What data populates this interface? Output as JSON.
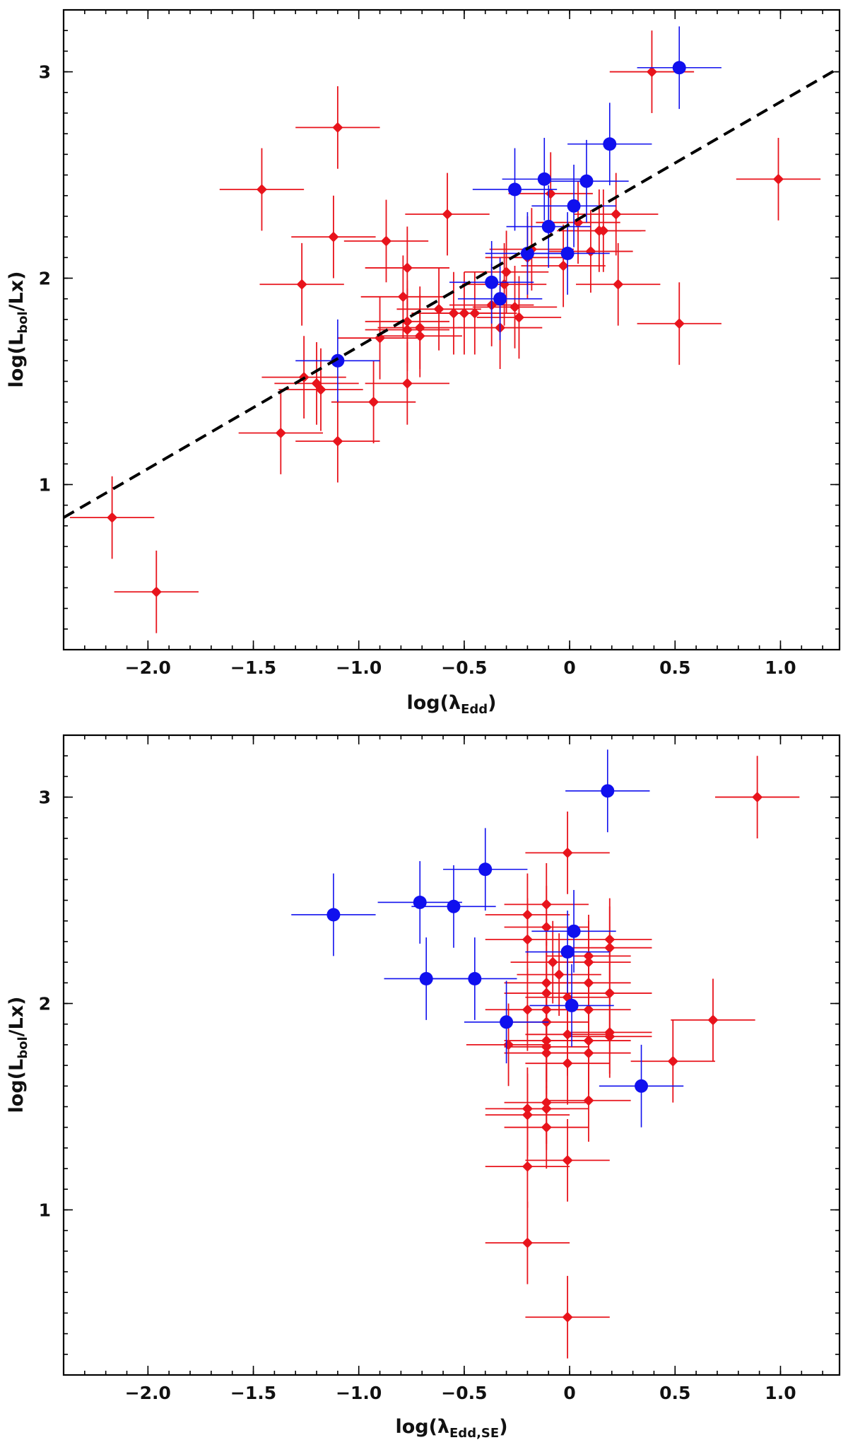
{
  "chart_data": [
    {
      "type": "scatter",
      "xlabel": "log(λ",
      "xlabel_sub": "Edd",
      "xlabel_tail": ")",
      "ylabel": "log(L",
      "ylabel_sub": "bol",
      "ylabel_tail": "/Lx)",
      "xlim": [
        -2.4,
        1.28
      ],
      "ylim": [
        0.2,
        3.3
      ],
      "x_ticks": [
        -2.0,
        -1.5,
        -1.0,
        -0.5,
        0,
        0.5,
        1.0
      ],
      "x_tick_labels": [
        "−2.0",
        "−1.5",
        "−1.0",
        "−0.5",
        "0",
        "0.5",
        "1.0"
      ],
      "y_ticks": [
        1,
        2,
        3
      ],
      "y_tick_labels": [
        "1",
        "2",
        "3"
      ],
      "grid": false,
      "fit_line": {
        "x": [
          -2.4,
          1.28
        ],
        "y": [
          0.84,
          3.02
        ],
        "style": "dashed",
        "color": "#000000"
      },
      "series": [
        {
          "color": "#e8141c",
          "marker": "diamond",
          "points": [
            {
              "x": -2.17,
              "y": 0.84,
              "xerr": 0.2,
              "yerr": 0.2
            },
            {
              "x": -1.96,
              "y": 0.48,
              "xerr": 0.2,
              "yerr": 0.2
            },
            {
              "x": -1.46,
              "y": 2.43,
              "xerr": 0.2,
              "yerr": 0.2
            },
            {
              "x": -1.1,
              "y": 2.73,
              "xerr": 0.2,
              "yerr": 0.2
            },
            {
              "x": -1.12,
              "y": 2.2,
              "xerr": 0.2,
              "yerr": 0.2
            },
            {
              "x": -1.27,
              "y": 1.97,
              "xerr": 0.2,
              "yerr": 0.2
            },
            {
              "x": -1.37,
              "y": 1.25,
              "xerr": 0.2,
              "yerr": 0.2
            },
            {
              "x": -1.26,
              "y": 1.52,
              "xerr": 0.2,
              "yerr": 0.2
            },
            {
              "x": -1.2,
              "y": 1.49,
              "xerr": 0.2,
              "yerr": 0.2
            },
            {
              "x": -1.18,
              "y": 1.46,
              "xerr": 0.2,
              "yerr": 0.2
            },
            {
              "x": -1.1,
              "y": 1.21,
              "xerr": 0.2,
              "yerr": 0.2
            },
            {
              "x": -0.93,
              "y": 1.4,
              "xerr": 0.2,
              "yerr": 0.2
            },
            {
              "x": -0.9,
              "y": 1.71,
              "xerr": 0.2,
              "yerr": 0.2
            },
            {
              "x": -0.87,
              "y": 2.18,
              "xerr": 0.2,
              "yerr": 0.2
            },
            {
              "x": -0.77,
              "y": 2.05,
              "xerr": 0.2,
              "yerr": 0.2
            },
            {
              "x": -0.79,
              "y": 1.91,
              "xerr": 0.2,
              "yerr": 0.2
            },
            {
              "x": -0.77,
              "y": 1.79,
              "xerr": 0.2,
              "yerr": 0.2
            },
            {
              "x": -0.77,
              "y": 1.75,
              "xerr": 0.2,
              "yerr": 0.2
            },
            {
              "x": -0.77,
              "y": 1.49,
              "xerr": 0.2,
              "yerr": 0.2
            },
            {
              "x": -0.71,
              "y": 1.76,
              "xerr": 0.2,
              "yerr": 0.2
            },
            {
              "x": -0.71,
              "y": 1.72,
              "xerr": 0.2,
              "yerr": 0.2
            },
            {
              "x": -0.58,
              "y": 2.31,
              "xerr": 0.2,
              "yerr": 0.2
            },
            {
              "x": -0.62,
              "y": 1.85,
              "xerr": 0.2,
              "yerr": 0.2
            },
            {
              "x": -0.55,
              "y": 1.83,
              "xerr": 0.2,
              "yerr": 0.2
            },
            {
              "x": -0.5,
              "y": 1.83,
              "xerr": 0.2,
              "yerr": 0.2
            },
            {
              "x": -0.45,
              "y": 1.83,
              "xerr": 0.2,
              "yerr": 0.2
            },
            {
              "x": -0.37,
              "y": 1.87,
              "xerr": 0.2,
              "yerr": 0.2
            },
            {
              "x": -0.33,
              "y": 1.76,
              "xerr": 0.2,
              "yerr": 0.2
            },
            {
              "x": -0.31,
              "y": 1.97,
              "xerr": 0.2,
              "yerr": 0.2
            },
            {
              "x": -0.3,
              "y": 2.03,
              "xerr": 0.2,
              "yerr": 0.2
            },
            {
              "x": -0.26,
              "y": 1.86,
              "xerr": 0.2,
              "yerr": 0.2
            },
            {
              "x": -0.24,
              "y": 1.81,
              "xerr": 0.2,
              "yerr": 0.2
            },
            {
              "x": -0.2,
              "y": 2.1,
              "xerr": 0.2,
              "yerr": 0.2
            },
            {
              "x": -0.18,
              "y": 2.14,
              "xerr": 0.2,
              "yerr": 0.2
            },
            {
              "x": -0.09,
              "y": 2.41,
              "xerr": 0.2,
              "yerr": 0.2
            },
            {
              "x": -0.03,
              "y": 2.06,
              "xerr": 0.2,
              "yerr": 0.2
            },
            {
              "x": 0.04,
              "y": 2.27,
              "xerr": 0.2,
              "yerr": 0.2
            },
            {
              "x": 0.1,
              "y": 2.13,
              "xerr": 0.2,
              "yerr": 0.2
            },
            {
              "x": 0.14,
              "y": 2.23,
              "xerr": 0.2,
              "yerr": 0.2
            },
            {
              "x": 0.16,
              "y": 2.23,
              "xerr": 0.2,
              "yerr": 0.2
            },
            {
              "x": 0.22,
              "y": 2.31,
              "xerr": 0.2,
              "yerr": 0.2
            },
            {
              "x": 0.23,
              "y": 1.97,
              "xerr": 0.2,
              "yerr": 0.2
            },
            {
              "x": 0.39,
              "y": 3.0,
              "xerr": 0.2,
              "yerr": 0.2
            },
            {
              "x": 0.52,
              "y": 1.78,
              "xerr": 0.2,
              "yerr": 0.2
            },
            {
              "x": 0.99,
              "y": 2.48,
              "xerr": 0.2,
              "yerr": 0.2
            }
          ]
        },
        {
          "color": "#1010ee",
          "marker": "circle",
          "points": [
            {
              "x": -1.1,
              "y": 1.6,
              "xerr": 0.2,
              "yerr": 0.2
            },
            {
              "x": -0.37,
              "y": 1.98,
              "xerr": 0.2,
              "yerr": 0.2
            },
            {
              "x": -0.33,
              "y": 1.9,
              "xerr": 0.2,
              "yerr": 0.2
            },
            {
              "x": -0.26,
              "y": 2.43,
              "xerr": 0.2,
              "yerr": 0.2
            },
            {
              "x": -0.2,
              "y": 2.12,
              "xerr": 0.2,
              "yerr": 0.2
            },
            {
              "x": -0.12,
              "y": 2.48,
              "xerr": 0.2,
              "yerr": 0.2
            },
            {
              "x": -0.1,
              "y": 2.25,
              "xerr": 0.2,
              "yerr": 0.2
            },
            {
              "x": -0.01,
              "y": 2.12,
              "xerr": 0.2,
              "yerr": 0.2
            },
            {
              "x": 0.02,
              "y": 2.35,
              "xerr": 0.2,
              "yerr": 0.2
            },
            {
              "x": 0.08,
              "y": 2.47,
              "xerr": 0.2,
              "yerr": 0.2
            },
            {
              "x": 0.19,
              "y": 2.65,
              "xerr": 0.2,
              "yerr": 0.2
            },
            {
              "x": 0.52,
              "y": 3.02,
              "xerr": 0.2,
              "yerr": 0.2
            }
          ]
        }
      ]
    },
    {
      "type": "scatter",
      "xlabel": "log(λ",
      "xlabel_sub": "Edd,SE",
      "xlabel_tail": ")",
      "ylabel": "log(L",
      "ylabel_sub": "bol",
      "ylabel_tail": "/Lx)",
      "xlim": [
        -2.4,
        1.28
      ],
      "ylim": [
        0.2,
        3.3
      ],
      "x_ticks": [
        -2.0,
        -1.5,
        -1.0,
        -0.5,
        0,
        0.5,
        1.0
      ],
      "x_tick_labels": [
        "−2.0",
        "−1.5",
        "−1.0",
        "−0.5",
        "0",
        "0.5",
        "1.0"
      ],
      "y_ticks": [
        1,
        2,
        3
      ],
      "y_tick_labels": [
        "1",
        "2",
        "3"
      ],
      "grid": false,
      "series": [
        {
          "color": "#e8141c",
          "marker": "diamond",
          "points": [
            {
              "x": 0.89,
              "y": 3.0,
              "xerr": 0.2,
              "yerr": 0.2
            },
            {
              "x": -0.01,
              "y": 2.73,
              "xerr": 0.2,
              "yerr": 0.2
            },
            {
              "x": -0.2,
              "y": 2.43,
              "xerr": 0.2,
              "yerr": 0.2
            },
            {
              "x": -0.11,
              "y": 2.48,
              "xerr": 0.2,
              "yerr": 0.2
            },
            {
              "x": -0.11,
              "y": 2.37,
              "xerr": 0.2,
              "yerr": 0.2
            },
            {
              "x": -0.2,
              "y": 2.31,
              "xerr": 0.2,
              "yerr": 0.2
            },
            {
              "x": 0.19,
              "y": 2.31,
              "xerr": 0.2,
              "yerr": 0.2
            },
            {
              "x": 0.19,
              "y": 2.27,
              "xerr": 0.2,
              "yerr": 0.2
            },
            {
              "x": 0.09,
              "y": 2.23,
              "xerr": 0.2,
              "yerr": 0.2
            },
            {
              "x": 0.09,
              "y": 2.2,
              "xerr": 0.2,
              "yerr": 0.2
            },
            {
              "x": -0.08,
              "y": 2.2,
              "xerr": 0.2,
              "yerr": 0.2
            },
            {
              "x": -0.05,
              "y": 2.14,
              "xerr": 0.2,
              "yerr": 0.2
            },
            {
              "x": -0.11,
              "y": 2.1,
              "xerr": 0.2,
              "yerr": 0.2
            },
            {
              "x": 0.09,
              "y": 2.1,
              "xerr": 0.2,
              "yerr": 0.2
            },
            {
              "x": -0.11,
              "y": 2.05,
              "xerr": 0.2,
              "yerr": 0.2
            },
            {
              "x": 0.19,
              "y": 2.05,
              "xerr": 0.2,
              "yerr": 0.2
            },
            {
              "x": -0.01,
              "y": 2.03,
              "xerr": 0.2,
              "yerr": 0.2
            },
            {
              "x": -0.2,
              "y": 1.97,
              "xerr": 0.2,
              "yerr": 0.2
            },
            {
              "x": -0.11,
              "y": 1.97,
              "xerr": 0.2,
              "yerr": 0.2
            },
            {
              "x": 0.09,
              "y": 1.97,
              "xerr": 0.2,
              "yerr": 0.2
            },
            {
              "x": -0.11,
              "y": 1.91,
              "xerr": 0.2,
              "yerr": 0.2
            },
            {
              "x": 0.68,
              "y": 1.92,
              "xerr": 0.2,
              "yerr": 0.2
            },
            {
              "x": 0.19,
              "y": 1.86,
              "xerr": 0.2,
              "yerr": 0.2
            },
            {
              "x": -0.01,
              "y": 1.85,
              "xerr": 0.2,
              "yerr": 0.2
            },
            {
              "x": 0.19,
              "y": 1.84,
              "xerr": 0.2,
              "yerr": 0.2
            },
            {
              "x": -0.11,
              "y": 1.82,
              "xerr": 0.2,
              "yerr": 0.2
            },
            {
              "x": 0.09,
              "y": 1.82,
              "xerr": 0.2,
              "yerr": 0.2
            },
            {
              "x": -0.29,
              "y": 1.8,
              "xerr": 0.2,
              "yerr": 0.2
            },
            {
              "x": -0.11,
              "y": 1.79,
              "xerr": 0.2,
              "yerr": 0.2
            },
            {
              "x": -0.11,
              "y": 1.76,
              "xerr": 0.2,
              "yerr": 0.2
            },
            {
              "x": 0.09,
              "y": 1.76,
              "xerr": 0.2,
              "yerr": 0.2
            },
            {
              "x": -0.01,
              "y": 1.71,
              "xerr": 0.2,
              "yerr": 0.2
            },
            {
              "x": 0.49,
              "y": 1.72,
              "xerr": 0.2,
              "yerr": 0.2
            },
            {
              "x": 0.09,
              "y": 1.53,
              "xerr": 0.2,
              "yerr": 0.2
            },
            {
              "x": -0.11,
              "y": 1.52,
              "xerr": 0.2,
              "yerr": 0.2
            },
            {
              "x": -0.11,
              "y": 1.49,
              "xerr": 0.2,
              "yerr": 0.2
            },
            {
              "x": -0.2,
              "y": 1.49,
              "xerr": 0.2,
              "yerr": 0.2
            },
            {
              "x": -0.2,
              "y": 1.46,
              "xerr": 0.2,
              "yerr": 0.2
            },
            {
              "x": -0.11,
              "y": 1.4,
              "xerr": 0.2,
              "yerr": 0.2
            },
            {
              "x": -0.01,
              "y": 1.24,
              "xerr": 0.2,
              "yerr": 0.2
            },
            {
              "x": -0.2,
              "y": 1.21,
              "xerr": 0.2,
              "yerr": 0.2
            },
            {
              "x": -0.2,
              "y": 0.84,
              "xerr": 0.2,
              "yerr": 0.2
            },
            {
              "x": -0.01,
              "y": 0.48,
              "xerr": 0.2,
              "yerr": 0.2
            }
          ]
        },
        {
          "color": "#1010ee",
          "marker": "circle",
          "points": [
            {
              "x": 0.18,
              "y": 3.03,
              "xerr": 0.2,
              "yerr": 0.2
            },
            {
              "x": -0.4,
              "y": 2.65,
              "xerr": 0.2,
              "yerr": 0.2
            },
            {
              "x": -0.71,
              "y": 2.49,
              "xerr": 0.2,
              "yerr": 0.2
            },
            {
              "x": -0.55,
              "y": 2.47,
              "xerr": 0.2,
              "yerr": 0.2
            },
            {
              "x": -1.12,
              "y": 2.43,
              "xerr": 0.2,
              "yerr": 0.2
            },
            {
              "x": 0.02,
              "y": 2.35,
              "xerr": 0.2,
              "yerr": 0.2
            },
            {
              "x": -0.01,
              "y": 2.25,
              "xerr": 0.2,
              "yerr": 0.2
            },
            {
              "x": -0.68,
              "y": 2.12,
              "xerr": 0.2,
              "yerr": 0.2
            },
            {
              "x": -0.45,
              "y": 2.12,
              "xerr": 0.2,
              "yerr": 0.2
            },
            {
              "x": 0.01,
              "y": 1.99,
              "xerr": 0.2,
              "yerr": 0.2
            },
            {
              "x": -0.3,
              "y": 1.91,
              "xerr": 0.2,
              "yerr": 0.2
            },
            {
              "x": 0.34,
              "y": 1.6,
              "xerr": 0.2,
              "yerr": 0.2
            }
          ]
        }
      ]
    }
  ]
}
